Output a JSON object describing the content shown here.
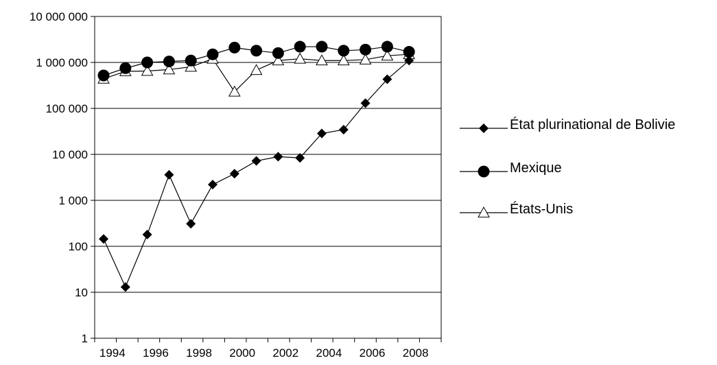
{
  "chart_data": {
    "type": "line",
    "title": "",
    "xlabel": "",
    "ylabel": "",
    "y_scale": "log",
    "ylim": [
      1,
      10000000
    ],
    "xlim": [
      1993,
      2008
    ],
    "grid": "horizontal",
    "legend_position": "right",
    "x_tick_labels": [
      "1994",
      "1996",
      "1998",
      "2000",
      "2002",
      "2004",
      "2006",
      "2008"
    ],
    "y_tick_labels": [
      "1",
      "10",
      "100",
      "1 000",
      "10 000",
      "100 000",
      "1 000 000",
      "10 000 000"
    ],
    "x": [
      1993,
      1994,
      1995,
      1996,
      1997,
      1998,
      1999,
      2000,
      2001,
      2002,
      2003,
      2004,
      2005,
      2006,
      2007,
      2008
    ],
    "series": [
      {
        "name": "État plurinational de Bolivie",
        "marker": "diamond",
        "values": [
          145,
          13,
          180,
          3600,
          310,
          2200,
          3800,
          7200,
          8900,
          8400,
          28500,
          34500,
          130000,
          430000,
          1100000,
          null
        ]
      },
      {
        "name": "Mexique",
        "marker": "circle",
        "values": [
          520000,
          750000,
          1000000,
          1050000,
          1100000,
          1500000,
          2100000,
          1800000,
          1600000,
          2200000,
          2200000,
          1800000,
          1900000,
          2200000,
          1700000,
          null
        ]
      },
      {
        "name": "États-Unis",
        "marker": "triangle",
        "values": [
          440000,
          640000,
          650000,
          700000,
          800000,
          1200000,
          230000,
          680000,
          1100000,
          1200000,
          1100000,
          1100000,
          1150000,
          1400000,
          1500000,
          null
        ]
      }
    ]
  },
  "colors": {
    "line": "#000000",
    "grid": "#000000",
    "background": "#ffffff"
  }
}
